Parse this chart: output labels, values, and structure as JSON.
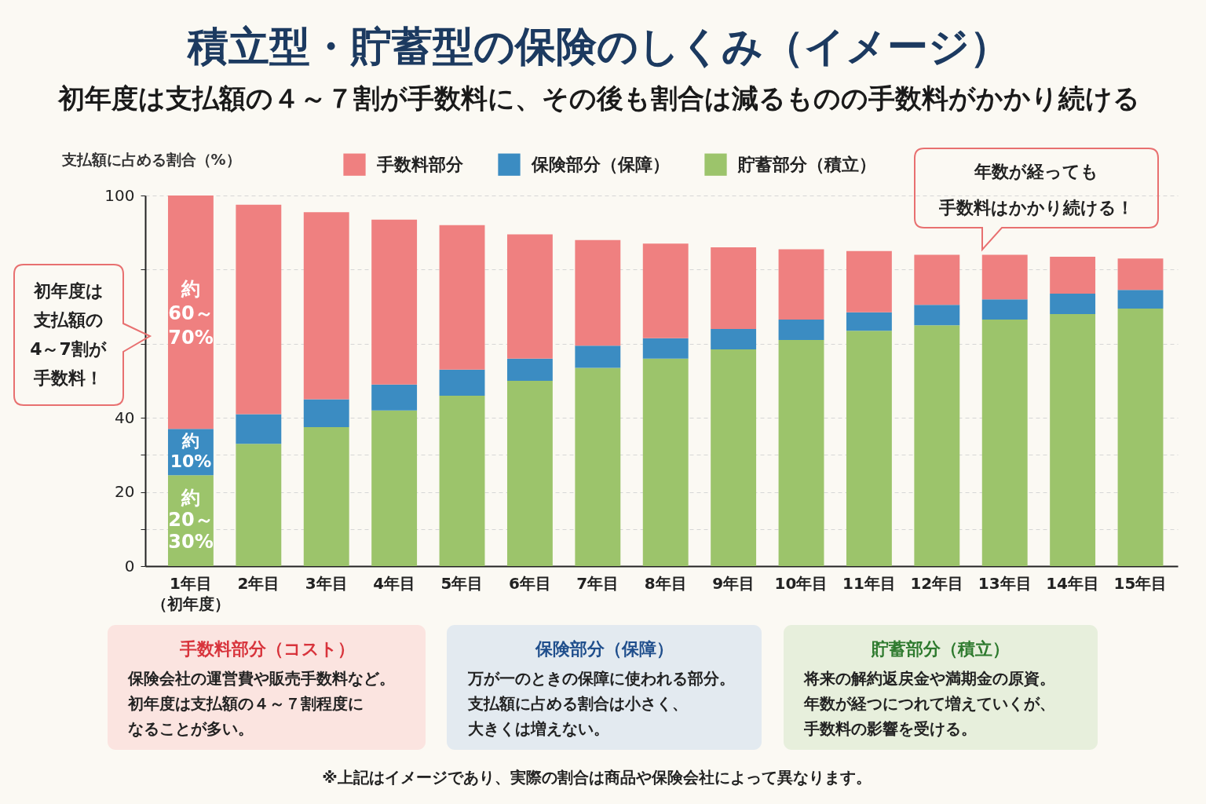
{
  "chart_data": {
    "type": "bar",
    "stacked": true,
    "title": "積立型・貯蓄型の保険のしくみ（イメージ）",
    "subtitle": "初年度は支払額の４～７割が手数料に、その後も割合は減るものの手数料がかかり続ける",
    "ylabel": "支払額に占める割合（%）",
    "categories": [
      "1年目（初年度）",
      "2年目",
      "3年目",
      "4年目",
      "5年目",
      "6年目",
      "7年目",
      "8年目",
      "9年目",
      "10年目",
      "11年目",
      "12年目",
      "13年目",
      "14年目",
      "15年目"
    ],
    "series": [
      {
        "name": "貯蓄部分（積立）",
        "color": "#9cc46b",
        "values": [
          24.5,
          33,
          37.5,
          42,
          46,
          50,
          53.5,
          56,
          58.5,
          61,
          63.5,
          65,
          66.5,
          68,
          69.5
        ]
      },
      {
        "name": "保険部分（保障）",
        "color": "#3b8cc2",
        "values": [
          12.5,
          8,
          7.5,
          7,
          7,
          6,
          6,
          5.5,
          5.5,
          5.5,
          5,
          5.5,
          5.5,
          5.5,
          5
        ]
      },
      {
        "name": "手数料部分",
        "color": "#ef8080",
        "values": [
          63,
          56.5,
          50.5,
          44.5,
          39,
          33.5,
          28.5,
          25.5,
          22,
          19,
          16.5,
          13.5,
          12,
          10,
          8.5
        ]
      }
    ],
    "ylim": [
      0,
      100
    ],
    "yticks": [
      0,
      {
        "value": 10,
        "label": null
      },
      20,
      {
        "value": 30,
        "label": null
      },
      40,
      {
        "value": 60,
        "label": null
      },
      {
        "value": 80,
        "label": null
      },
      100
    ],
    "grid": "y",
    "legend": "top",
    "annotations": [
      "約60～70%",
      "約10%",
      "約20～30%",
      "初年度は支払額の4～7割が手数料！",
      "年数が経っても手数料はかかり続ける！",
      "手数料部分（コスト）",
      "保険会社の運営費や販売手数料など。初年度は支払額の４～７割程度になることが多い。",
      "保険部分（保障）",
      "万が一のときの保障に使われる部分。支払額に占める割合は小さく、大きくは増えない。",
      "貯蓄部分（積立）",
      "将来の解約返戻金や満期金の原資。年数が経つにつれて増えていくが、手数料の影響を受ける。",
      "※上記はイメージであり、実際の割合は商品や保険会社によって異なります。"
    ]
  }
}
